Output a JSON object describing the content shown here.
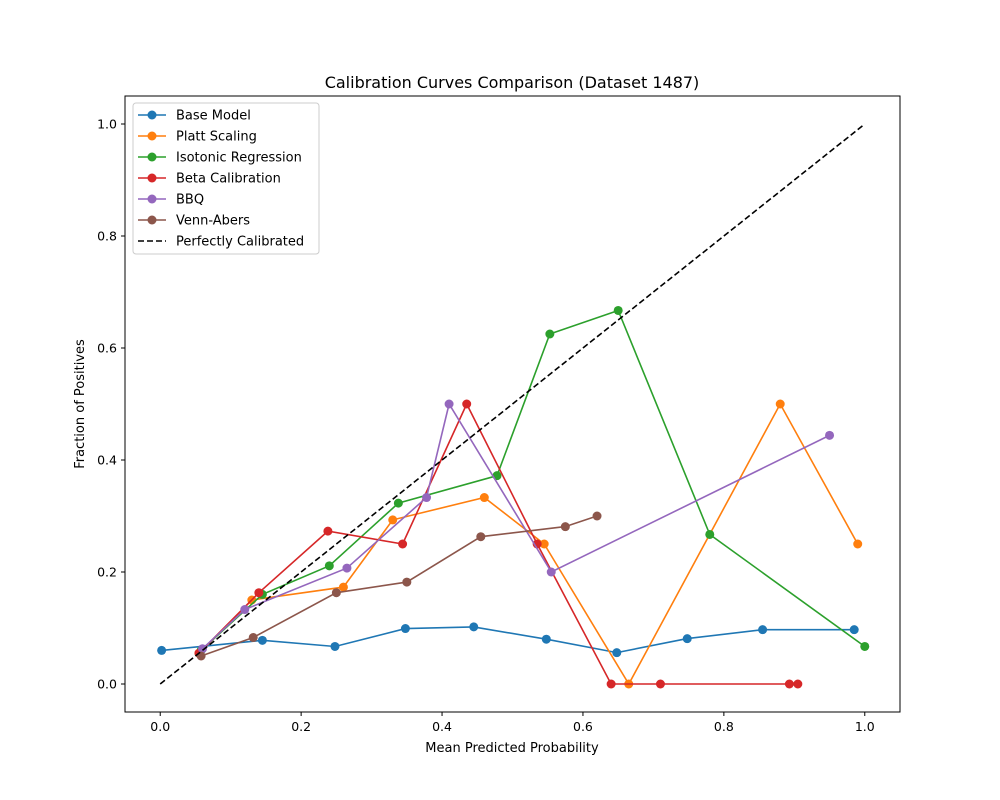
{
  "chart_data": {
    "type": "line",
    "title": "Calibration Curves Comparison (Dataset 1487)",
    "xlabel": "Mean Predicted Probability",
    "ylabel": "Fraction of Positives",
    "xlim": [
      -0.05,
      1.05
    ],
    "ylim": [
      -0.05,
      1.05
    ],
    "xticks": [
      0.0,
      0.2,
      0.4,
      0.6,
      0.8,
      1.0
    ],
    "yticks": [
      0.0,
      0.2,
      0.4,
      0.6,
      0.8,
      1.0
    ],
    "xtick_labels": [
      "0.0",
      "0.2",
      "0.4",
      "0.6",
      "0.8",
      "1.0"
    ],
    "ytick_labels": [
      "0.0",
      "0.2",
      "0.4",
      "0.6",
      "0.8",
      "1.0"
    ],
    "grid": false,
    "legend_position": "top-left",
    "series": [
      {
        "name": "Base Model",
        "color": "#1f77b4",
        "marker": "circle",
        "x": [
          0.002,
          0.145,
          0.248,
          0.348,
          0.445,
          0.548,
          0.648,
          0.748,
          0.855,
          0.985
        ],
        "y": [
          0.06,
          0.078,
          0.067,
          0.099,
          0.102,
          0.08,
          0.056,
          0.081,
          0.097,
          0.097
        ]
      },
      {
        "name": "Platt Scaling",
        "color": "#ff7f0e",
        "marker": "circle",
        "x": [
          0.055,
          0.13,
          0.26,
          0.33,
          0.46,
          0.545,
          0.665,
          0.88,
          0.99
        ],
        "y": [
          0.055,
          0.15,
          0.173,
          0.293,
          0.333,
          0.25,
          0.0,
          0.5,
          0.25
        ]
      },
      {
        "name": "Isotonic Regression",
        "color": "#2ca02c",
        "marker": "circle",
        "x": [
          0.058,
          0.145,
          0.24,
          0.338,
          0.478,
          0.553,
          0.65,
          0.78,
          1.0
        ],
        "y": [
          0.06,
          0.16,
          0.211,
          0.323,
          0.372,
          0.625,
          0.667,
          0.267,
          0.067
        ]
      },
      {
        "name": "Beta Calibration",
        "color": "#d62728",
        "marker": "circle",
        "x": [
          0.055,
          0.14,
          0.238,
          0.344,
          0.435,
          0.535,
          0.64,
          0.71,
          0.893,
          0.905
        ],
        "y": [
          0.055,
          0.163,
          0.273,
          0.25,
          0.5,
          0.25,
          0.0,
          0.0,
          0.0,
          0.0
        ]
      },
      {
        "name": "BBQ",
        "color": "#9467bd",
        "marker": "circle",
        "x": [
          0.06,
          0.12,
          0.265,
          0.378,
          0.41,
          0.555,
          0.95
        ],
        "y": [
          0.063,
          0.133,
          0.207,
          0.333,
          0.5,
          0.2,
          0.444
        ]
      },
      {
        "name": "Venn-Abers",
        "color": "#8c564b",
        "marker": "circle",
        "x": [
          0.058,
          0.132,
          0.25,
          0.35,
          0.455,
          0.575,
          0.62
        ],
        "y": [
          0.05,
          0.083,
          0.163,
          0.182,
          0.263,
          0.281,
          0.3
        ]
      },
      {
        "name": "Perfectly Calibrated",
        "color": "#000000",
        "marker": "none",
        "dashed": true,
        "x": [
          0.0,
          1.0
        ],
        "y": [
          0.0,
          1.0
        ]
      }
    ]
  }
}
